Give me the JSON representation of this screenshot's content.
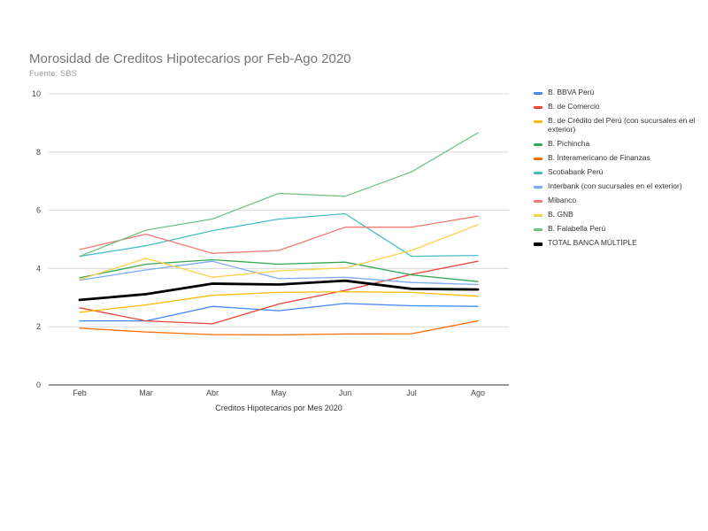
{
  "chart_data": {
    "type": "line",
    "title": "Morosidad de Creditos Hipotecarios por Feb-Ago 2020",
    "subtitle": "Fuente: SBS",
    "xlabel": "Creditos Hipotecarios por Mes 2020",
    "ylabel": "",
    "ylim": [
      0,
      10
    ],
    "yticks": [
      "0",
      "2",
      "4",
      "6",
      "8",
      "10"
    ],
    "categories": [
      "Feb",
      "Mar",
      "Abr",
      "May",
      "Jun",
      "Jul",
      "Ago"
    ],
    "legend_position": "right",
    "series": [
      {
        "name": "B. BBVA Perú",
        "color": "#4285f4",
        "width": 1.3,
        "values": [
          2.2,
          2.2,
          2.7,
          2.55,
          2.8,
          2.72,
          2.7
        ]
      },
      {
        "name": "B. de Comercio",
        "color": "#ea4335",
        "width": 1.3,
        "values": [
          2.65,
          2.2,
          2.1,
          2.78,
          3.25,
          3.8,
          4.25
        ]
      },
      {
        "name": "B. de Crédito del Perú (con sucursales en el exterior)",
        "color": "#fbbc04",
        "width": 1.3,
        "values": [
          2.5,
          2.75,
          3.08,
          3.18,
          3.2,
          3.18,
          3.05
        ]
      },
      {
        "name": "B. Pichincha",
        "color": "#34a853",
        "width": 1.3,
        "values": [
          3.68,
          4.15,
          4.3,
          4.15,
          4.22,
          3.78,
          3.55
        ]
      },
      {
        "name": "B. Interamericano de Finanzas",
        "color": "#ff6d01",
        "width": 1.3,
        "values": [
          1.95,
          1.82,
          1.73,
          1.72,
          1.75,
          1.76,
          2.2
        ]
      },
      {
        "name": "Scotiabank Perú",
        "color": "#46bdc6",
        "width": 1.3,
        "values": [
          4.42,
          4.78,
          5.3,
          5.7,
          5.88,
          4.42,
          4.45
        ]
      },
      {
        "name": "Interbank (con sucursales en el exterior)",
        "color": "#7baaf7",
        "width": 1.3,
        "values": [
          3.6,
          3.95,
          4.25,
          3.65,
          3.7,
          3.52,
          3.45
        ]
      },
      {
        "name": "Mibanco",
        "color": "#f07b72",
        "width": 1.3,
        "values": [
          4.65,
          5.18,
          4.52,
          4.62,
          5.42,
          5.42,
          5.8
        ]
      },
      {
        "name": "B. GNB",
        "color": "#fcd04f",
        "width": 1.3,
        "values": [
          3.62,
          4.35,
          3.7,
          3.92,
          4.02,
          4.62,
          5.5
        ]
      },
      {
        "name": "B. Falabella Perú",
        "color": "#71c287",
        "width": 1.3,
        "values": [
          4.42,
          5.32,
          5.7,
          6.58,
          6.48,
          7.32,
          8.66
        ]
      },
      {
        "name": "TOTAL BANCA MÚLTIPLE",
        "color": "#000000",
        "width": 2.8,
        "values": [
          2.92,
          3.12,
          3.48,
          3.45,
          3.58,
          3.3,
          3.28
        ]
      }
    ]
  }
}
